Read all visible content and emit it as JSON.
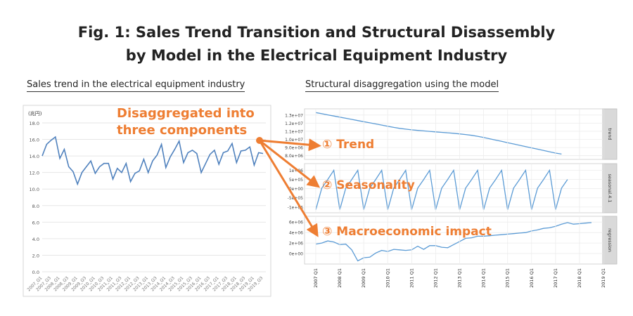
{
  "title": {
    "line1": "Fig. 1: Sales Trend Transition and Structural Disassembly",
    "line2": "by Model in the Electrical Equipment Industry"
  },
  "left_section_label": "Sales trend in the electrical equipment industry",
  "right_section_label": "Structural disaggregation using the model",
  "callouts": {
    "main_line1": "Disaggregated into",
    "main_line2": "three components",
    "trend": "① Trend",
    "seasonality": "② Seasonality",
    "macro": "③ Macroeconomic impact"
  },
  "colors": {
    "accent": "#ee7e33",
    "line": "#4f81bd",
    "panel_line": "#5b9bd5",
    "strip": "#d9d9d9"
  },
  "chart_data": [
    {
      "type": "line",
      "ylabel": "(兆円)",
      "ylim": [
        0,
        18
      ],
      "yticks": [
        "0.0",
        "2.0",
        "4.0",
        "6.0",
        "8.0",
        "10.0",
        "12.0",
        "14.0",
        "16.0",
        "18.0"
      ],
      "x": [
        "2007_Q1",
        "2007_Q2",
        "2007_Q3",
        "2007_Q4",
        "2008_Q1",
        "2008_Q2",
        "2008_Q3",
        "2008_Q4",
        "2009_Q1",
        "2009_Q2",
        "2009_Q3",
        "2009_Q4",
        "2010_Q1",
        "2010_Q2",
        "2010_Q3",
        "2010_Q4",
        "2011_Q1",
        "2011_Q2",
        "2011_Q3",
        "2011_Q4",
        "2012_Q1",
        "2012_Q2",
        "2012_Q3",
        "2012_Q4",
        "2013_Q1",
        "2013_Q2",
        "2013_Q3",
        "2013_Q4",
        "2014_Q1",
        "2014_Q2",
        "2014_Q3",
        "2014_Q4",
        "2015_Q1",
        "2015_Q2",
        "2015_Q3",
        "2015_Q4",
        "2016_Q1",
        "2016_Q2",
        "2016_Q3",
        "2016_Q4",
        "2017_Q1",
        "2017_Q2",
        "2017_Q3",
        "2017_Q4",
        "2018_Q1",
        "2018_Q2",
        "2018_Q3",
        "2018_Q4",
        "2019_Q1",
        "2019_Q2",
        "2019_Q3"
      ],
      "xticks": [
        "2007_Q1",
        "2007_Q3",
        "2008_Q1",
        "2008_Q3",
        "2009_Q1",
        "2009_Q3",
        "2010_Q1",
        "2010_Q3",
        "2011_Q1",
        "2011_Q3",
        "2012_Q1",
        "2012_Q3",
        "2013_Q1",
        "2013_Q3",
        "2014_Q1",
        "2014_Q3",
        "2015_Q1",
        "2015_Q3",
        "2016_Q1",
        "2016_Q3",
        "2017_Q1",
        "2017_Q3",
        "2018_Q1",
        "2018_Q3",
        "2019_Q1",
        "2019_Q3"
      ],
      "values": [
        14.0,
        15.4,
        15.9,
        16.3,
        13.7,
        14.8,
        12.7,
        12.1,
        10.6,
        12.0,
        12.7,
        13.4,
        11.9,
        12.7,
        13.1,
        13.1,
        11.2,
        12.5,
        12.0,
        13.1,
        10.9,
        11.9,
        12.2,
        13.6,
        12.0,
        13.4,
        14.1,
        15.4,
        12.6,
        13.9,
        14.8,
        15.8,
        13.2,
        14.4,
        14.7,
        14.3,
        12.0,
        13.1,
        14.2,
        14.7,
        13.0,
        14.4,
        14.6,
        15.5,
        13.2,
        14.6,
        14.7,
        15.1,
        12.9,
        14.4,
        14.3
      ]
    },
    {
      "type": "line",
      "panels": [
        {
          "name": "trend",
          "yticks": [
            "8.0e+06",
            "9.0e+06",
            "1.0e+07",
            "1.1e+07",
            "1.2e+07",
            "1.3e+07"
          ],
          "ylim": [
            7800000,
            13500000
          ],
          "values": [
            13300000,
            13160000,
            13020000,
            12880000,
            12740000,
            12600000,
            12460000,
            12320000,
            12180000,
            12040000,
            11900000,
            11760000,
            11620000,
            11480000,
            11360000,
            11260000,
            11180000,
            11110000,
            11050000,
            10990000,
            10930000,
            10870000,
            10810000,
            10750000,
            10680000,
            10600000,
            10500000,
            10380000,
            10240000,
            10080000,
            9920000,
            9760000,
            9600000,
            9440000,
            9280000,
            9120000,
            8960000,
            8800000,
            8640000,
            8480000,
            8320000,
            8200000
          ]
        },
        {
          "name": "seasonal.4.1",
          "yticks": [
            "-1e+06",
            "-5e+05",
            "0e+00",
            "5e+05",
            "1e+06"
          ],
          "ylim": [
            -1200000,
            1250000
          ],
          "values": [
            -1150000,
            30000,
            500000,
            1000000,
            -1150000,
            30000,
            500000,
            1000000,
            -1150000,
            30000,
            500000,
            1000000,
            -1150000,
            30000,
            500000,
            1000000,
            -1150000,
            30000,
            500000,
            1000000,
            -1150000,
            30000,
            500000,
            1000000,
            -1150000,
            30000,
            500000,
            1000000,
            -1150000,
            30000,
            500000,
            1000000,
            -1150000,
            30000,
            500000,
            1000000,
            -1150000,
            30000,
            500000,
            1000000,
            -1150000,
            30000,
            500000
          ]
        },
        {
          "name": "regression",
          "yticks": [
            "0e+00",
            "2e+06",
            "4e+06",
            "6e+06"
          ],
          "ylim": [
            -1600000,
            6700000
          ],
          "values": [
            1800000,
            2000000,
            2400000,
            2200000,
            1700000,
            1800000,
            700000,
            -1400000,
            -800000,
            -700000,
            100000,
            600000,
            400000,
            800000,
            700000,
            600000,
            700000,
            1400000,
            800000,
            1500000,
            1500000,
            1200000,
            1100000,
            1700000,
            2300000,
            2900000,
            3000000,
            3300000,
            3300000,
            3400000,
            3500000,
            3600000,
            3700000,
            3800000,
            3900000,
            4000000,
            4300000,
            4500000,
            4800000,
            4900000,
            5200000,
            5600000,
            5900000,
            5600000,
            5700000,
            5800000,
            5900000
          ]
        }
      ],
      "xticks": [
        "2007 Q1",
        "2008 Q1",
        "2009 Q1",
        "2010 Q1",
        "2011 Q1",
        "2012 Q1",
        "2013 Q1",
        "2014 Q1",
        "2015 Q1",
        "2016 Q1",
        "2017 Q1",
        "2018 Q1",
        "2019 Q1"
      ]
    }
  ]
}
